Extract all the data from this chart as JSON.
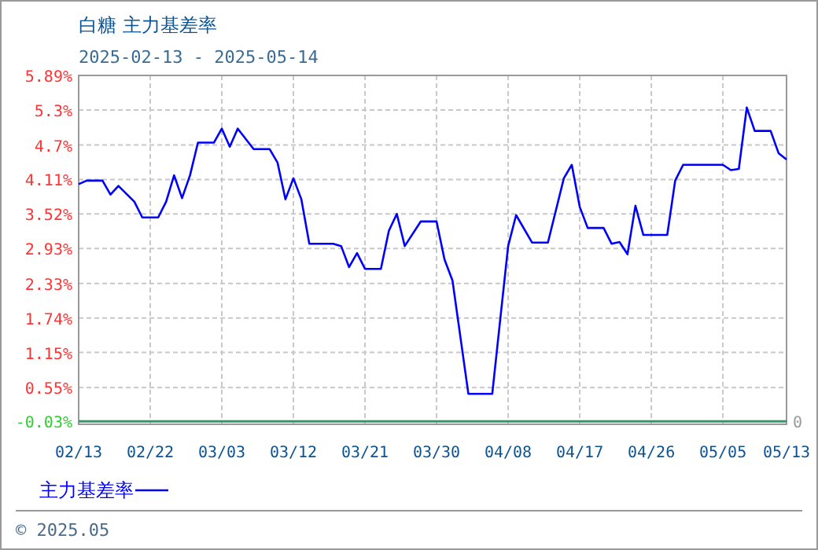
{
  "chart_data": {
    "type": "line",
    "title": "白糖  主力基差率",
    "subtitle": "2025-02-13 - 2025-05-14",
    "annotations": [
      "© 2025.05"
    ],
    "xlim": [
      "2025-02-13",
      "2025-05-13"
    ],
    "xticks": [
      {
        "value": "2025-02-13",
        "label": "02/13"
      },
      {
        "value": "2025-02-22",
        "label": "02/22"
      },
      {
        "value": "2025-03-03",
        "label": "03/03"
      },
      {
        "value": "2025-03-12",
        "label": "03/12"
      },
      {
        "value": "2025-03-21",
        "label": "03/21"
      },
      {
        "value": "2025-03-30",
        "label": "03/30"
      },
      {
        "value": "2025-04-08",
        "label": "04/08"
      },
      {
        "value": "2025-04-17",
        "label": "04/17"
      },
      {
        "value": "2025-04-26",
        "label": "04/26"
      },
      {
        "value": "2025-05-05",
        "label": "05/05"
      },
      {
        "value": "2025-05-13",
        "label": "05/13"
      }
    ],
    "ylim": [
      -0.08,
      5.89
    ],
    "yticks": [
      {
        "value": -0.03,
        "label": "-0.03%"
      },
      {
        "value": 0.55,
        "label": "0.55%"
      },
      {
        "value": 1.15,
        "label": "1.15%"
      },
      {
        "value": 1.74,
        "label": "1.74%"
      },
      {
        "value": 2.33,
        "label": "2.33%"
      },
      {
        "value": 2.93,
        "label": "2.93%"
      },
      {
        "value": 3.52,
        "label": "3.52%"
      },
      {
        "value": 4.11,
        "label": "4.11%"
      },
      {
        "value": 4.7,
        "label": "4.7%"
      },
      {
        "value": 5.3,
        "label": "5.3%"
      },
      {
        "value": 5.89,
        "label": "5.89%"
      }
    ],
    "grid": true,
    "legend": "bottom left",
    "marker": "none",
    "line_style": "solid",
    "ref_lines": [
      {
        "axis": "y",
        "value": -0.03,
        "label": "0",
        "color": "#339966"
      }
    ],
    "series": [
      {
        "name": "主力基差率",
        "color": "#0000ff",
        "x": [
          "2025-02-13",
          "2025-02-14",
          "2025-02-16",
          "2025-02-17",
          "2025-02-18",
          "2025-02-20",
          "2025-02-21",
          "2025-02-23",
          "2025-02-24",
          "2025-02-25",
          "2025-02-26",
          "2025-02-27",
          "2025-02-28",
          "2025-03-02",
          "2025-03-03",
          "2025-03-04",
          "2025-03-05",
          "2025-03-07",
          "2025-03-09",
          "2025-03-10",
          "2025-03-11",
          "2025-03-12",
          "2025-03-13",
          "2025-03-14",
          "2025-03-17",
          "2025-03-18",
          "2025-03-19",
          "2025-03-20",
          "2025-03-21",
          "2025-03-23",
          "2025-03-24",
          "2025-03-25",
          "2025-03-26",
          "2025-03-28",
          "2025-03-30",
          "2025-03-31",
          "2025-04-01",
          "2025-04-03",
          "2025-04-06",
          "2025-04-07",
          "2025-04-08",
          "2025-04-09",
          "2025-04-11",
          "2025-04-13",
          "2025-04-15",
          "2025-04-16",
          "2025-04-17",
          "2025-04-18",
          "2025-04-20",
          "2025-04-21",
          "2025-04-22",
          "2025-04-23",
          "2025-04-24",
          "2025-04-25",
          "2025-04-28",
          "2025-04-29",
          "2025-04-30",
          "2025-05-05",
          "2025-05-06",
          "2025-05-07",
          "2025-05-08",
          "2025-05-09",
          "2025-05-11",
          "2025-05-12",
          "2025-05-13"
        ],
        "values": [
          4.03,
          4.09,
          4.09,
          3.85,
          4.0,
          3.73,
          3.46,
          3.46,
          3.73,
          4.18,
          3.79,
          4.18,
          4.74,
          4.74,
          4.98,
          4.67,
          4.98,
          4.63,
          4.63,
          4.4,
          3.77,
          4.13,
          3.77,
          3.01,
          3.01,
          2.97,
          2.61,
          2.85,
          2.58,
          2.58,
          3.23,
          3.52,
          2.97,
          3.39,
          3.39,
          2.74,
          2.38,
          0.44,
          0.44,
          1.71,
          2.97,
          3.5,
          3.03,
          3.03,
          4.13,
          4.36,
          3.64,
          3.28,
          3.28,
          3.01,
          3.04,
          2.83,
          3.66,
          3.16,
          3.16,
          4.09,
          4.36,
          4.36,
          4.27,
          4.29,
          5.34,
          4.94,
          4.94,
          4.56,
          4.45
        ]
      }
    ]
  }
}
